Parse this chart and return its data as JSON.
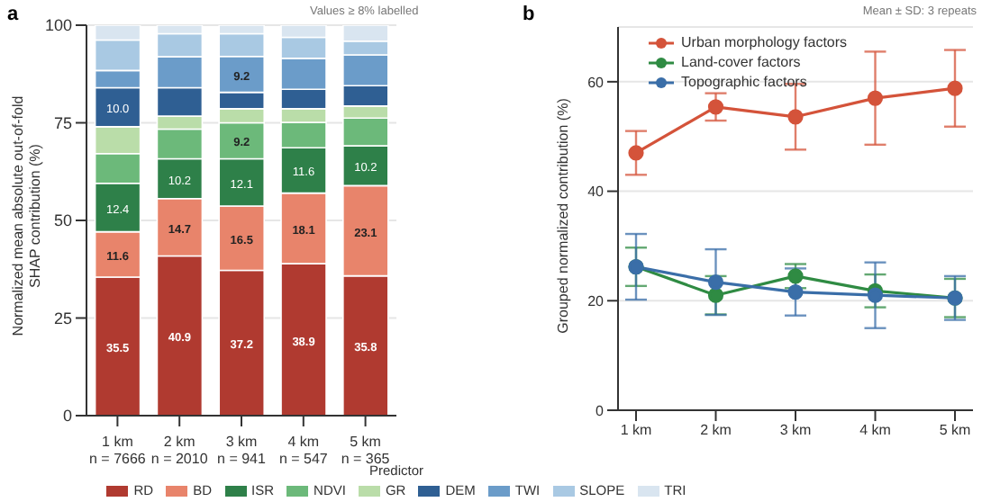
{
  "chart_data": [
    {
      "type": "bar",
      "title": "a",
      "stacked": true,
      "categories": [
        "1 km\nn = 7666",
        "2 km\nn = 2010",
        "3 km\nn = 941",
        "4 km\nn = 547",
        "5 km\nn = 365"
      ],
      "ylabel": "Normalized mean absolute out-of-fold\nSHAP contribution (%)",
      "ylim": [
        0,
        100
      ],
      "yticks": [
        0,
        25,
        50,
        75,
        100
      ],
      "grid": "y",
      "legend": "bottom",
      "legend_title": "Predictor",
      "annotations": [
        "Values ≥ 8% labelled"
      ],
      "series": [
        {
          "name": "RD",
          "color": "#b03a30",
          "values": [
            35.5,
            40.9,
            37.2,
            38.9,
            35.8
          ],
          "value_labels": [
            "35.5",
            "40.9",
            "37.2",
            "38.9",
            "35.8"
          ]
        },
        {
          "name": "BD",
          "color": "#e8846b",
          "values": [
            11.6,
            14.7,
            16.5,
            18.1,
            23.1
          ],
          "value_labels": [
            "11.6",
            "14.7",
            "16.5",
            "18.1",
            "23.1"
          ]
        },
        {
          "name": "ISR",
          "color": "#2e8049",
          "values": [
            12.4,
            10.2,
            12.1,
            11.6,
            10.2
          ],
          "value_labels": [
            "12.4",
            "10.2",
            "12.1",
            "11.6",
            "10.2"
          ]
        },
        {
          "name": "NDVI",
          "color": "#6cb97a",
          "values": [
            7.6,
            7.6,
            9.2,
            6.5,
            7.1
          ],
          "value_labels": [
            null,
            null,
            "9.2",
            null,
            null
          ]
        },
        {
          "name": "GR",
          "color": "#badda9",
          "values": [
            6.9,
            3.3,
            3.6,
            3.5,
            3.1
          ],
          "value_labels": [
            null,
            null,
            null,
            null,
            null
          ]
        },
        {
          "name": "DEM",
          "color": "#2f5f93",
          "values": [
            10.0,
            7.3,
            4.2,
            5.0,
            5.2
          ],
          "value_labels": [
            "10.0",
            null,
            null,
            null,
            null
          ]
        },
        {
          "name": "TWI",
          "color": "#6b9cc9",
          "values": [
            4.4,
            7.9,
            9.2,
            7.9,
            7.9
          ],
          "value_labels": [
            null,
            null,
            "9.2",
            null,
            null
          ]
        },
        {
          "name": "SLOPE",
          "color": "#a9c9e3",
          "values": [
            7.8,
            5.9,
            5.8,
            5.4,
            3.5
          ],
          "value_labels": [
            null,
            null,
            null,
            null,
            null
          ]
        },
        {
          "name": "TRI",
          "color": "#d9e5f0",
          "values": [
            3.8,
            2.2,
            2.2,
            3.1,
            4.1
          ],
          "value_labels": [
            null,
            null,
            null,
            null,
            null
          ]
        }
      ]
    },
    {
      "type": "line",
      "title": "b",
      "categories": [
        "1 km",
        "2 km",
        "3 km",
        "4 km",
        "5 km"
      ],
      "ylabel": "Grouped normalized contribution (%)",
      "ylim": [
        0,
        70
      ],
      "yticks": [
        0,
        20,
        40,
        60
      ],
      "grid": "y",
      "legend": "top left",
      "marker": "circle",
      "line_style": "solid",
      "annotations": [
        "Mean ± SD: 3 repeats"
      ],
      "series": [
        {
          "name": "Urban morphology factors",
          "color": "#d4533a",
          "values": [
            47.0,
            55.4,
            53.6,
            57.0,
            58.8
          ],
          "errors": [
            4,
            2.5,
            6,
            8.5,
            7
          ]
        },
        {
          "name": "Land-cover factors",
          "color": "#2f8b43",
          "values": [
            26.2,
            21.0,
            24.5,
            21.8,
            20.5
          ],
          "errors": [
            3.5,
            3.5,
            2.2,
            3,
            3.5
          ]
        },
        {
          "name": "Topographic factors",
          "color": "#3a6ea8",
          "values": [
            26.2,
            23.4,
            21.6,
            21.0,
            20.5
          ],
          "errors": [
            6,
            6,
            4.3,
            6,
            4
          ]
        }
      ]
    }
  ]
}
